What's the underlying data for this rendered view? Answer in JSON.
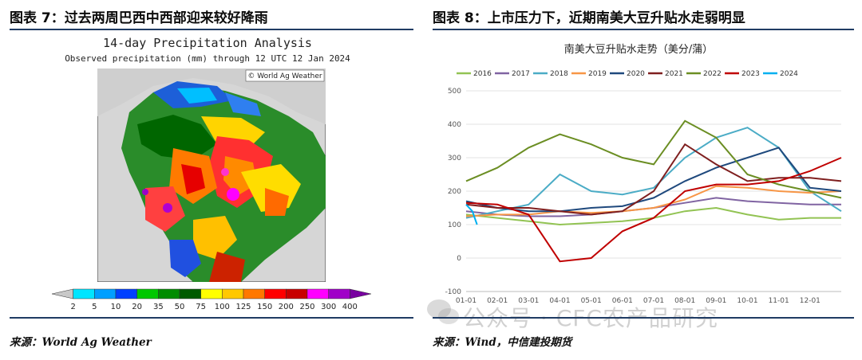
{
  "left": {
    "title": "图表 7：过去两周巴西中西部迎来较好降雨",
    "map_title": "14-day Precipitation Analysis",
    "map_subtitle": "Observed precipitation (mm) through 12 UTC 12 Jan 2024",
    "copyright": "© World Ag Weather",
    "legend": {
      "labels": [
        "2",
        "5",
        "10",
        "20",
        "35",
        "50",
        "75",
        "100",
        "125",
        "150",
        "200",
        "250",
        "300",
        "400"
      ],
      "colors": [
        "#c8c8c8",
        "#00e5ff",
        "#009fff",
        "#0040ff",
        "#00c800",
        "#008c00",
        "#005a00",
        "#ffff00",
        "#ffc800",
        "#ff7800",
        "#ff0000",
        "#c80000",
        "#ff00ff",
        "#a000c8",
        "#7800a0"
      ]
    },
    "source": "来源：World Ag Weather"
  },
  "right": {
    "title": "图表 8：上市压力下，近期南美大豆升贴水走弱明显",
    "source": "来源：Wind，中信建投期货",
    "watermark": "公众号 · CFC农产品研究"
  },
  "chart_data": {
    "type": "line",
    "title": "南美大豆升贴水走势（美分/蒲）",
    "x_ticks": [
      "01-01",
      "02-01",
      "03-01",
      "04-01",
      "05-01",
      "06-01",
      "07-01",
      "08-01",
      "09-01",
      "10-01",
      "11-01",
      "12-01"
    ],
    "ylim": [
      -100,
      500
    ],
    "y_ticks": [
      -100,
      0,
      100,
      200,
      300,
      400,
      500
    ],
    "grid": true,
    "legend_position": "top",
    "series": [
      {
        "name": "2016",
        "color": "#92c353",
        "x": [
          0,
          1,
          2,
          3,
          4,
          5,
          6,
          7,
          8,
          9,
          10,
          11,
          12
        ],
        "values": [
          130,
          120,
          110,
          100,
          105,
          110,
          120,
          140,
          150,
          130,
          115,
          120,
          120
        ]
      },
      {
        "name": "2017",
        "color": "#8064a2",
        "x": [
          0,
          1,
          2,
          3,
          4,
          5,
          6,
          7,
          8,
          9,
          10,
          11,
          12
        ],
        "values": [
          140,
          130,
          125,
          125,
          130,
          140,
          150,
          165,
          180,
          170,
          165,
          160,
          160
        ]
      },
      {
        "name": "2018",
        "color": "#4bacc6",
        "x": [
          0,
          1,
          2,
          3,
          4,
          5,
          6,
          7,
          8,
          9,
          10,
          11,
          12
        ],
        "values": [
          120,
          140,
          160,
          250,
          200,
          190,
          210,
          300,
          360,
          390,
          330,
          200,
          140
        ]
      },
      {
        "name": "2019",
        "color": "#f79646",
        "x": [
          0,
          1,
          2,
          3,
          4,
          5,
          6,
          7,
          8,
          9,
          10,
          11,
          12
        ],
        "values": [
          125,
          130,
          130,
          140,
          135,
          140,
          150,
          175,
          215,
          210,
          200,
          195,
          200
        ]
      },
      {
        "name": "2020",
        "color": "#1f497d",
        "x": [
          0,
          1,
          2,
          3,
          4,
          5,
          6,
          7,
          8,
          9,
          10,
          11,
          12
        ],
        "values": [
          170,
          150,
          140,
          140,
          150,
          155,
          180,
          230,
          270,
          300,
          330,
          210,
          200
        ]
      },
      {
        "name": "2021",
        "color": "#7f1f1f",
        "x": [
          0,
          1,
          2,
          3,
          4,
          5,
          6,
          7,
          8,
          9,
          10,
          11,
          12
        ],
        "values": [
          160,
          150,
          150,
          140,
          130,
          140,
          200,
          340,
          280,
          230,
          240,
          240,
          230
        ]
      },
      {
        "name": "2022",
        "color": "#6b8e23",
        "x": [
          0,
          1,
          2,
          3,
          4,
          5,
          6,
          7,
          8,
          9,
          10,
          11,
          12
        ],
        "values": [
          230,
          270,
          330,
          370,
          340,
          300,
          280,
          410,
          360,
          250,
          220,
          200,
          180
        ]
      },
      {
        "name": "2023",
        "color": "#c00000",
        "x": [
          0,
          1,
          2,
          3,
          4,
          5,
          6,
          7,
          8,
          9,
          10,
          11,
          12
        ],
        "values": [
          165,
          160,
          130,
          -10,
          0,
          80,
          120,
          200,
          220,
          220,
          230,
          260,
          300
        ]
      },
      {
        "name": "2024",
        "color": "#00b0f0",
        "x": [
          0,
          0.2,
          0.35
        ],
        "values": [
          160,
          140,
          100
        ]
      }
    ]
  }
}
